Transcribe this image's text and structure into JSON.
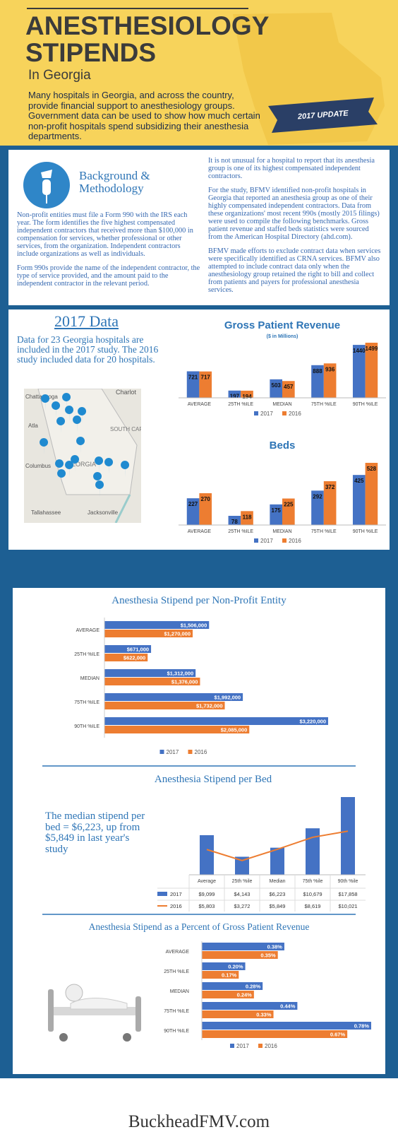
{
  "header": {
    "title_lines": [
      "ANESTHESIOLOGY",
      "STIPENDS"
    ],
    "subtitle": "In Georgia",
    "intro": "Many hospitals in Georgia, and across the country, provide financial support to anesthesiology groups. Government data can be used to show how much certain non-profit hospitals spend subsidizing their anesthesia departments.",
    "badge": "2017 UPDATE"
  },
  "background": {
    "heading": "Background & Methodology",
    "paragraphs": [
      "Non-profit entities must file a Form 990 with the IRS each year. The form identifies the five highest compensated independent contractors that received more than $100,000 in compensation for services, whether professional or other services, from the organization. Independent contractors include organizations as well as individuals.",
      "Form 990s provide the name of the independent contractor, the type of service provided, and the amount paid to the independent contractor in the relevant period.",
      "It is not unusual for a hospital to report that its anesthesia group is one of its highest compensated independent contractors.",
      "For the study, BFMV identified non-profit hospitals in Georgia that reported an anesthesia group as one of their highly compensated independent contractors. Data from these organizations' most recent 990s (mostly 2015 filings) were used to compile the following benchmarks. Gross patient revenue and staffed beds statistics were sourced from the American Hospital Directory (ahd.com).",
      "BFMV made efforts to exclude contract data when services were specifically identified as CRNA services. BFMV also attempted to include contract data only when the anesthesiology group retained the right to bill and collect from patients and payers for professional anesthesia services."
    ]
  },
  "data_section": {
    "heading": "2017 Data",
    "text": "Data for 23 Georgia hospitals are included in the 2017 study. The 2016 study included data for 20 hospitals.",
    "map_labels": [
      "Charlot",
      "Chattanooga",
      "Atla",
      "GEORGIA",
      "SOUTH CARO",
      "Columbus",
      "Tallahassee",
      "Jacksonville"
    ]
  },
  "chart_data": [
    {
      "type": "bar",
      "title": "Gross Patient Revenue",
      "subtitle": "($ in Millions)",
      "categories": [
        "AVERAGE",
        "25TH %ILE",
        "MEDIAN",
        "75TH %ILE",
        "90TH %ILE"
      ],
      "series": [
        {
          "name": "2017",
          "color": "#4472c4",
          "values": [
            721,
            197,
            503,
            888,
            1440
          ]
        },
        {
          "name": "2016",
          "color": "#ed7d31",
          "values": [
            717,
            194,
            457,
            936,
            1499
          ]
        }
      ]
    },
    {
      "type": "bar",
      "title": "Beds",
      "categories": [
        "AVERAGE",
        "25TH %ILE",
        "MEDIAN",
        "75TH %ILE",
        "90TH %ILE"
      ],
      "series": [
        {
          "name": "2017",
          "color": "#4472c4",
          "values": [
            227,
            78,
            175,
            292,
            425
          ]
        },
        {
          "name": "2016",
          "color": "#ed7d31",
          "values": [
            270,
            118,
            225,
            372,
            528
          ]
        }
      ]
    },
    {
      "type": "hbar",
      "title": "Anesthesia Stipend per Non-Profit Entity",
      "categories": [
        "AVERAGE",
        "25TH %ILE",
        "MEDIAN",
        "75TH %ILE",
        "90TH %ILE"
      ],
      "series": [
        {
          "name": "2017",
          "color": "#4472c4",
          "values": [
            1506000,
            671000,
            1312000,
            1992000,
            3220000
          ],
          "value_labels": [
            "$1,506,000",
            "$671,000",
            "$1,312,000",
            "$1,992,000",
            "$3,220,000"
          ]
        },
        {
          "name": "2016",
          "color": "#ed7d31",
          "values": [
            1270000,
            622000,
            1376000,
            1732000,
            2085000
          ],
          "value_labels": [
            "$1,270,000",
            "$622,000",
            "$1,376,000",
            "$1,732,000",
            "$2,085,000"
          ]
        }
      ]
    },
    {
      "type": "combo",
      "title": "Anesthesia Stipend per Bed",
      "callout": "The median stipend per bed = $6,223, up from $5,849 in last year's study",
      "categories": [
        "Average",
        "25th %ile",
        "Median",
        "75th %ile",
        "90th %ile"
      ],
      "series": [
        {
          "name": "2017",
          "type": "bar",
          "color": "#4472c4",
          "values": [
            9099,
            4143,
            6223,
            10679,
            17858
          ],
          "value_labels": [
            "$9,099",
            "$4,143",
            "$6,223",
            "$10,679",
            "$17,858"
          ]
        },
        {
          "name": "2016",
          "type": "line",
          "color": "#ed7d31",
          "values": [
            5803,
            3272,
            5849,
            8619,
            10021
          ],
          "value_labels": [
            "$5,803",
            "$3,272",
            "$5,849",
            "$8,619",
            "$10,021"
          ]
        }
      ]
    },
    {
      "type": "hbar",
      "title": "Anesthesia Stipend as a Percent of Gross Patient Revenue",
      "categories": [
        "AVERAGE",
        "25TH %ILE",
        "MEDIAN",
        "75TH %ILE",
        "90TH %ILE"
      ],
      "series": [
        {
          "name": "2017",
          "color": "#4472c4",
          "values": [
            0.38,
            0.2,
            0.28,
            0.44,
            0.78
          ],
          "value_labels": [
            "0.38%",
            "0.20%",
            "0.28%",
            "0.44%",
            "0.78%"
          ]
        },
        {
          "name": "2016",
          "color": "#ed7d31",
          "values": [
            0.35,
            0.17,
            0.24,
            0.33,
            0.67
          ],
          "value_labels": [
            "0.35%",
            "0.17%",
            "0.24%",
            "0.33%",
            "0.67%"
          ]
        }
      ]
    }
  ],
  "footer": "BuckheadFMV.com"
}
